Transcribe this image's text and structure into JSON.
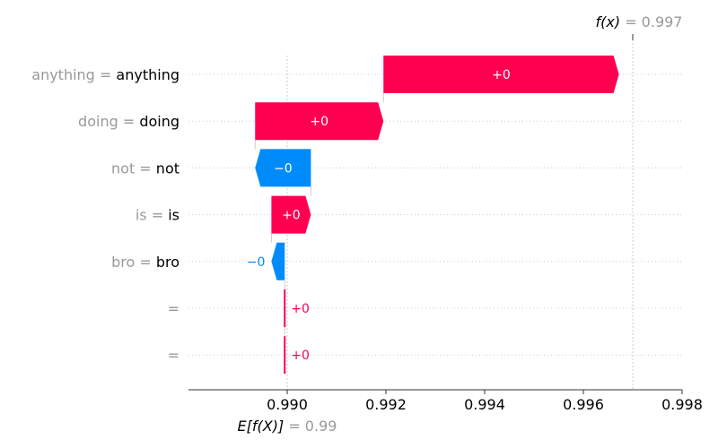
{
  "chart_data": {
    "type": "waterfall",
    "xlim": [
      0.988,
      0.998
    ],
    "x_ticks": [
      {
        "value": 0.99,
        "label": "0.990"
      },
      {
        "value": 0.992,
        "label": "0.992"
      },
      {
        "value": 0.994,
        "label": "0.994"
      },
      {
        "value": 0.996,
        "label": "0.996"
      },
      {
        "value": 0.998,
        "label": "0.998"
      }
    ],
    "base_value": 0.99,
    "base_label_prefix": "E[f(X)]",
    "base_label_value": "= 0.99",
    "output_value": 0.997,
    "output_label_prefix": "f(x)",
    "output_label_value": "= 0.997",
    "features": [
      {
        "label_gray": "anything =",
        "label_black": "anything",
        "start": 0.99195,
        "end": 0.99672,
        "value_label": "+0",
        "sign": "positive"
      },
      {
        "label_gray": "doing  =",
        "label_black": "doing",
        "start": 0.98935,
        "end": 0.99195,
        "value_label": "+0",
        "sign": "positive"
      },
      {
        "label_gray": "not  =",
        "label_black": "not",
        "start": 0.99048,
        "end": 0.98935,
        "value_label": "−0",
        "sign": "negative"
      },
      {
        "label_gray": "is  =",
        "label_black": "is",
        "start": 0.98968,
        "end": 0.99048,
        "value_label": "+0",
        "sign": "positive"
      },
      {
        "label_gray": "bro  =",
        "label_black": "bro",
        "start": 0.98995,
        "end": 0.98968,
        "value_label": "−0",
        "sign": "negative"
      },
      {
        "label_gray": "=",
        "label_black": "",
        "start": 0.98995,
        "end": 0.98995,
        "value_label": "+0",
        "sign": "positive"
      },
      {
        "label_gray": "=",
        "label_black": "",
        "start": 0.98995,
        "end": 0.98995,
        "value_label": "+0",
        "sign": "positive"
      }
    ],
    "colors": {
      "positive": "#ff0051",
      "negative": "#008bfb",
      "gray_text": "#999999",
      "axis": "#333333",
      "grid": "#cccccc"
    },
    "grid": "dotted-rows",
    "legend": "none"
  }
}
